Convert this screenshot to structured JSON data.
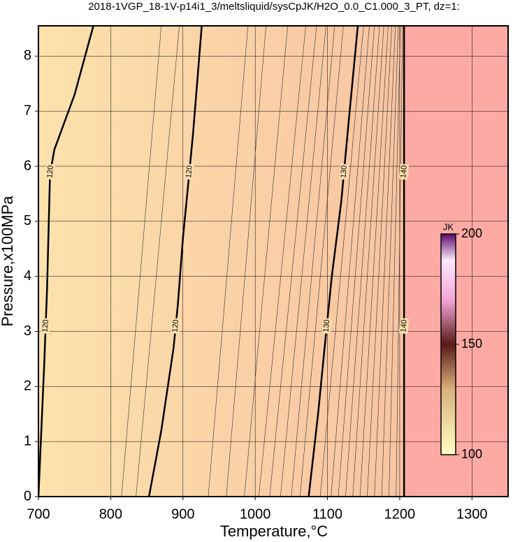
{
  "chart_data": {
    "type": "contour",
    "title": "2018-1VGP_18-1V-p14i1_3/meltsliquid/sysCpJK/H2O_0.0_C1.000_3_PT, dz=1:",
    "x_label": "Temperature,°C",
    "y_label": "Pressure,x100MPa",
    "xlim": [
      700,
      1350
    ],
    "ylim": [
      0,
      8.55
    ],
    "xticks": [
      700,
      800,
      900,
      1000,
      1100,
      1200,
      1300
    ],
    "yticks": [
      0,
      1,
      2,
      3,
      4,
      5,
      6,
      7,
      8
    ],
    "grid": true,
    "contours": [
      {
        "level": 120,
        "x": [
          700,
          708,
          712,
          716,
          722,
          750,
          776
        ],
        "y": [
          0,
          2.4,
          3.8,
          5.85,
          6.3,
          7.3,
          8.55
        ]
      },
      {
        "level": 120,
        "x": [
          853,
          870,
          887,
          893,
          900,
          906,
          914,
          926
        ],
        "y": [
          0,
          1.2,
          2.7,
          3.5,
          4.7,
          5.5,
          6.6,
          8.55
        ]
      },
      {
        "level": 130,
        "x": [
          1074,
          1087,
          1096,
          1106,
          1119,
          1130,
          1142
        ],
        "y": [
          0,
          1.5,
          2.7,
          4,
          5.35,
          6.9,
          8.55
        ]
      },
      {
        "level": 140,
        "x": [
          1206,
          1206
        ],
        "y": [
          0,
          8.55
        ]
      }
    ],
    "thin_contours": [
      {
        "x": [
          815,
          870
        ],
        "y": [
          0,
          8.55
        ]
      },
      {
        "x": [
          835,
          895
        ],
        "y": [
          0,
          8.55
        ]
      },
      {
        "x": [
          935,
          990
        ],
        "y": [
          0,
          8.55
        ]
      },
      {
        "x": [
          960,
          1015
        ],
        "y": [
          0,
          8.55
        ]
      },
      {
        "x": [
          985,
          1045
        ],
        "y": [
          0,
          8.55
        ]
      },
      {
        "x": [
          1005,
          1070
        ],
        "y": [
          0,
          8.55
        ]
      },
      {
        "x": [
          1020,
          1085
        ],
        "y": [
          0,
          8.55
        ]
      },
      {
        "x": [
          1035,
          1098
        ],
        "y": [
          0,
          8.55
        ]
      },
      {
        "x": [
          1050,
          1110
        ],
        "y": [
          0,
          8.55
        ]
      },
      {
        "x": [
          1062,
          1122
        ],
        "y": [
          0,
          8.55
        ]
      },
      {
        "x": [
          1090,
          1150
        ],
        "y": [
          0,
          8.55
        ]
      },
      {
        "x": [
          1105,
          1158
        ],
        "y": [
          0,
          8.55
        ]
      },
      {
        "x": [
          1115,
          1165
        ],
        "y": [
          0,
          8.55
        ]
      },
      {
        "x": [
          1125,
          1172
        ],
        "y": [
          0,
          8.55
        ]
      },
      {
        "x": [
          1135,
          1178
        ],
        "y": [
          0,
          8.55
        ]
      },
      {
        "x": [
          1145,
          1184
        ],
        "y": [
          0,
          8.55
        ]
      },
      {
        "x": [
          1155,
          1189
        ],
        "y": [
          0,
          8.55
        ]
      },
      {
        "x": [
          1165,
          1194
        ],
        "y": [
          0,
          8.55
        ]
      },
      {
        "x": [
          1175,
          1198
        ],
        "y": [
          0,
          8.55
        ]
      },
      {
        "x": [
          1185,
          1201
        ],
        "y": [
          0,
          8.55
        ]
      },
      {
        "x": [
          1195,
          1204
        ],
        "y": [
          0,
          8.55
        ]
      }
    ],
    "colorbar": {
      "label": "JK",
      "lim": [
        100,
        200
      ],
      "ticks": [
        100,
        150,
        200
      ]
    }
  }
}
